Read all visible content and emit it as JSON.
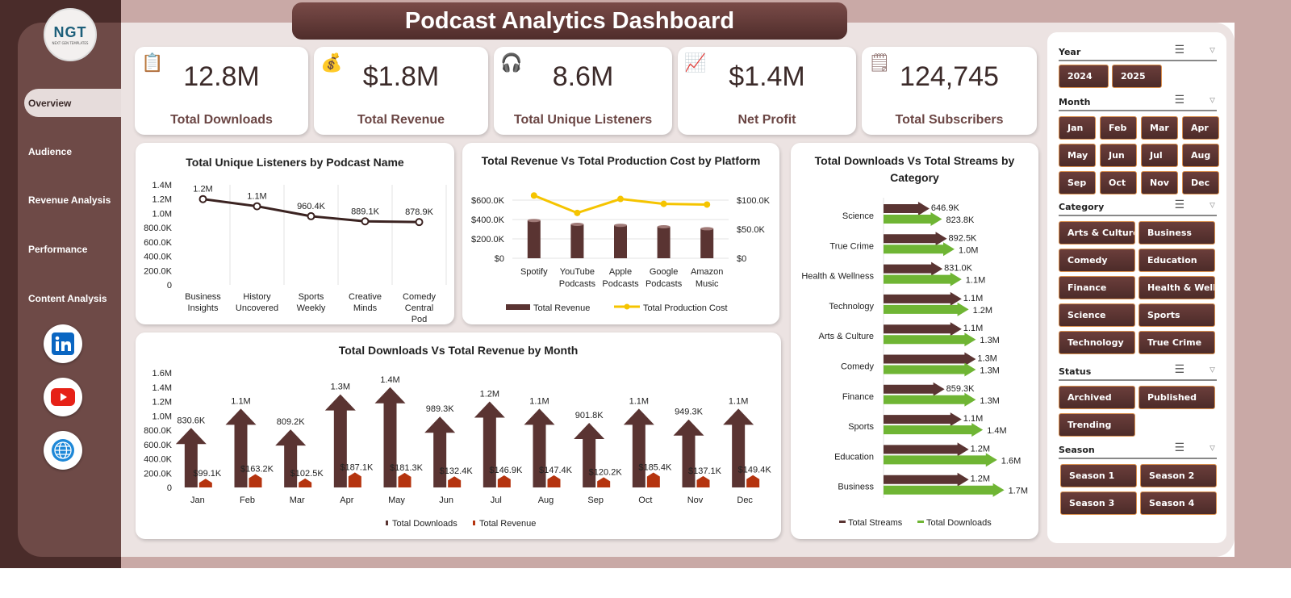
{
  "title": "Podcast Analytics Dashboard",
  "logo": {
    "text": "NGT",
    "subtext": "NEXT GEN TEMPLATES"
  },
  "nav": [
    {
      "label": "Overview",
      "active": true
    },
    {
      "label": "Audience"
    },
    {
      "label": "Revenue Analysis"
    },
    {
      "label": "Performance"
    },
    {
      "label": "Content Analysis"
    }
  ],
  "social": [
    "linkedin-icon",
    "youtube-icon",
    "globe-icon"
  ],
  "kpis": [
    {
      "value": "12.8M",
      "label": "Total Downloads",
      "icon": "clipboard-money-icon"
    },
    {
      "value": "$1.8M",
      "label": "Total Revenue",
      "icon": "money-bag-icon"
    },
    {
      "value": "8.6M",
      "label": "Total Unique Listeners",
      "icon": "listener-icon"
    },
    {
      "value": "$1.4M",
      "label": "Net Profit",
      "icon": "profit-chart-icon"
    },
    {
      "value": "124,745",
      "label": "Total Subscribers",
      "icon": "checklist-icon"
    }
  ],
  "colors": {
    "brown": "#5a3432",
    "yellow": "#f5c400",
    "green": "#6fb534",
    "accent": "#d9904f"
  },
  "chart_data": [
    {
      "type": "line",
      "title": "Total Unique Listeners by Podcast Name",
      "categories": [
        "Business Insights",
        "History Uncovered",
        "Sports Weekly",
        "Creative Minds",
        "Comedy Central Pod"
      ],
      "values": [
        1200000,
        1100000,
        960400,
        889100,
        878900
      ],
      "labels": [
        "1.2M",
        "1.1M",
        "960.4K",
        "889.1K",
        "878.9K"
      ],
      "ylim": [
        0,
        1400000
      ],
      "yticks": [
        "0",
        "200.0K",
        "400.0K",
        "600.0K",
        "800.0K",
        "1.0M",
        "1.2M",
        "1.4M"
      ]
    },
    {
      "type": "bar",
      "title": "Total Revenue Vs Total Production Cost by Platform",
      "categories": [
        "Spotify",
        "YouTube Podcasts",
        "Apple Podcasts",
        "Google Podcasts",
        "Amazon Music"
      ],
      "series": [
        {
          "name": "Total Revenue",
          "values": [
            390000,
            350000,
            340000,
            325000,
            305000
          ],
          "axis": "left"
        },
        {
          "name": "Total Production Cost",
          "values": [
            90000,
            65000,
            85000,
            78000,
            77000
          ],
          "axis": "right",
          "kind": "line"
        }
      ],
      "ylim": [
        0,
        600000
      ],
      "y2lim": [
        0,
        100000
      ],
      "yticks": [
        "$0",
        "$200.0K",
        "$400.0K",
        "$600.0K"
      ],
      "y2ticks": [
        "$0",
        "$50.0K",
        "$100.0K"
      ],
      "legend": "bottom"
    },
    {
      "type": "bar",
      "title": "Total Downloads Vs Total Streams by Category",
      "orientation": "horizontal",
      "categories": [
        "Science",
        "True Crime",
        "Health & Wellness",
        "Technology",
        "Arts & Culture",
        "Comedy",
        "Finance",
        "Sports",
        "Education",
        "Business"
      ],
      "series": [
        {
          "name": "Total Streams",
          "values": [
            646900,
            892500,
            831000,
            1100000,
            1100000,
            1300000,
            859300,
            1100000,
            1200000,
            1200000
          ],
          "labels": [
            "646.9K",
            "892.5K",
            "831.0K",
            "1.1M",
            "1.1M",
            "1.3M",
            "859.3K",
            "1.1M",
            "1.2M",
            "1.2M"
          ]
        },
        {
          "name": "Total Downloads",
          "values": [
            823800,
            1000000,
            1100000,
            1200000,
            1300000,
            1300000,
            1300000,
            1400000,
            1600000,
            1700000
          ],
          "labels": [
            "823.8K",
            "1.0M",
            "1.1M",
            "1.2M",
            "1.3M",
            "1.3M",
            "1.3M",
            "1.4M",
            "1.6M",
            "1.7M"
          ]
        }
      ],
      "legend": "bottom"
    },
    {
      "type": "bar",
      "title": "Total Downloads Vs Total Revenue  by Month",
      "categories": [
        "Jan",
        "Feb",
        "Mar",
        "Apr",
        "May",
        "Jun",
        "Jul",
        "Aug",
        "Sep",
        "Oct",
        "Nov",
        "Dec"
      ],
      "series": [
        {
          "name": "Total Downloads",
          "values": [
            830600,
            1100000,
            809200,
            1300000,
            1400000,
            989300,
            1200000,
            1100000,
            901800,
            1100000,
            949300,
            1100000
          ],
          "labels": [
            "830.6K",
            "1.1M",
            "809.2K",
            "1.3M",
            "1.4M",
            "989.3K",
            "1.2M",
            "1.1M",
            "901.8K",
            "1.1M",
            "949.3K",
            "1.1M"
          ]
        },
        {
          "name": "Total Revenue",
          "values": [
            99100,
            163200,
            102500,
            187100,
            181300,
            132400,
            146900,
            147400,
            120200,
            185400,
            137100,
            149400
          ],
          "labels": [
            "$99.1K",
            "$163.2K",
            "$102.5K",
            "$187.1K",
            "$181.3K",
            "$132.4K",
            "$146.9K",
            "$147.4K",
            "$120.2K",
            "$185.4K",
            "$137.1K",
            "$149.4K"
          ]
        }
      ],
      "ylim": [
        0,
        1600000
      ],
      "yticks": [
        "0",
        "200.0K",
        "400.0K",
        "600.0K",
        "800.0K",
        "1.0M",
        "1.2M",
        "1.4M",
        "1.6M"
      ],
      "legend": "bottom"
    }
  ],
  "slicers": [
    {
      "label": "Year",
      "items": [
        "2024",
        "2025"
      ]
    },
    {
      "label": "Month",
      "items": [
        "Jan",
        "Feb",
        "Mar",
        "Apr",
        "May",
        "Jun",
        "Jul",
        "Aug",
        "Sep",
        "Oct",
        "Nov",
        "Dec"
      ]
    },
    {
      "label": "Category",
      "items": [
        "Arts & Culture",
        "Business",
        "Comedy",
        "Education",
        "Finance",
        "Health & Wellness",
        "Science",
        "Sports",
        "Technology",
        "True Crime"
      ]
    },
    {
      "label": "Status",
      "items": [
        "Archived",
        "Published",
        "Trending"
      ]
    },
    {
      "label": "Season",
      "items": [
        "Season 1",
        "Season 2",
        "Season 3",
        "Season 4"
      ]
    }
  ]
}
